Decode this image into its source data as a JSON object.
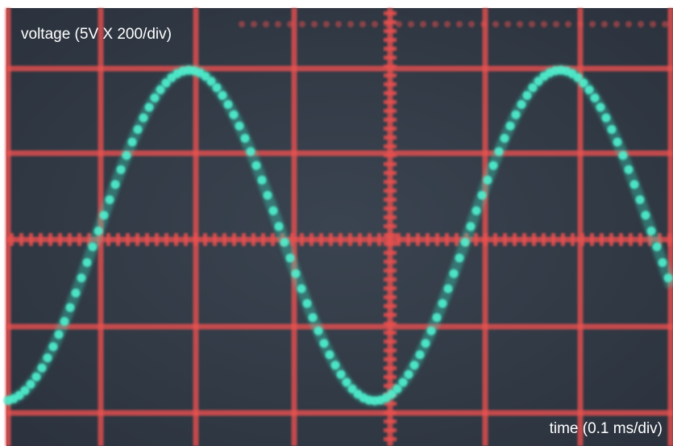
{
  "photo": {
    "y_axis_label": "voltage (5V X 200/div)",
    "x_axis_label": "time (0.1 ms/div)"
  }
}
